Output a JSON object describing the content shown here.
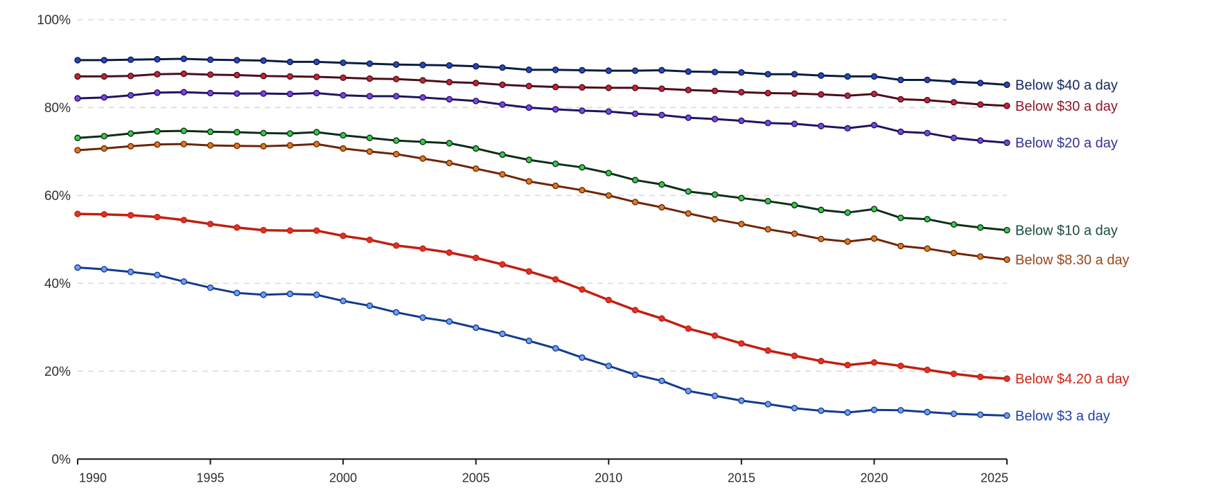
{
  "chart_data": {
    "type": "line",
    "title": "",
    "grid": "horizontal-dashed",
    "legend_position": "right-end-labels",
    "axes": {
      "x_min": 1990,
      "x_max": 2025,
      "y_min": 0,
      "y_max": 100,
      "xticks": [
        1990,
        1995,
        2000,
        2005,
        2010,
        2015,
        2020,
        2025
      ],
      "yticks": [
        0,
        20,
        40,
        60,
        80,
        100
      ],
      "ytick_suffix": "%"
    },
    "x": [
      1990,
      1991,
      1992,
      1993,
      1994,
      1995,
      1996,
      1997,
      1998,
      1999,
      2000,
      2001,
      2002,
      2003,
      2004,
      2005,
      2006,
      2007,
      2008,
      2009,
      2010,
      2011,
      2012,
      2013,
      2014,
      2015,
      2016,
      2017,
      2018,
      2019,
      2020,
      2021,
      2022,
      2023,
      2024,
      2025
    ],
    "series": [
      {
        "name": "below-40-a-day",
        "label": "Below $40 a day",
        "line_color": "#0a1c40",
        "marker_color": "#2746c4",
        "label_color": "#12275e",
        "line_width": 3,
        "values": [
          90.8,
          90.8,
          90.9,
          91.0,
          91.1,
          90.9,
          90.8,
          90.7,
          90.4,
          90.4,
          90.2,
          90.0,
          89.8,
          89.7,
          89.6,
          89.4,
          89.1,
          88.6,
          88.6,
          88.5,
          88.4,
          88.4,
          88.5,
          88.2,
          88.1,
          88.0,
          87.6,
          87.6,
          87.3,
          87.1,
          87.1,
          86.3,
          86.3,
          85.9,
          85.6,
          85.2
        ]
      },
      {
        "name": "below-30-a-day",
        "label": "Below $30 a day",
        "line_color": "#4a0d18",
        "marker_color": "#c22438",
        "label_color": "#8f1728",
        "line_width": 3,
        "values": [
          87.1,
          87.1,
          87.2,
          87.6,
          87.7,
          87.5,
          87.4,
          87.2,
          87.1,
          87.0,
          86.8,
          86.6,
          86.5,
          86.2,
          85.8,
          85.6,
          85.2,
          84.9,
          84.7,
          84.6,
          84.5,
          84.5,
          84.3,
          84.0,
          83.8,
          83.5,
          83.3,
          83.2,
          83.0,
          82.7,
          83.1,
          81.9,
          81.7,
          81.2,
          80.7,
          80.4
        ]
      },
      {
        "name": "below-20-a-day",
        "label": "Below $20 a day",
        "line_color": "#1e1460",
        "marker_color": "#7d44e0",
        "label_color": "#33309b",
        "line_width": 3,
        "values": [
          82.1,
          82.3,
          82.8,
          83.4,
          83.5,
          83.3,
          83.2,
          83.2,
          83.1,
          83.3,
          82.8,
          82.6,
          82.6,
          82.3,
          81.9,
          81.5,
          80.7,
          80.0,
          79.6,
          79.3,
          79.1,
          78.6,
          78.3,
          77.7,
          77.4,
          77.0,
          76.5,
          76.3,
          75.8,
          75.3,
          76.0,
          74.5,
          74.2,
          73.1,
          72.5,
          72.0
        ]
      },
      {
        "name": "below-10-a-day",
        "label": "Below $10 a day",
        "line_color": "#0c2e16",
        "marker_color": "#37c94c",
        "label_color": "#1b4d3e",
        "line_width": 3,
        "values": [
          73.1,
          73.5,
          74.1,
          74.6,
          74.7,
          74.5,
          74.4,
          74.2,
          74.1,
          74.4,
          73.7,
          73.1,
          72.5,
          72.2,
          71.9,
          70.7,
          69.3,
          68.1,
          67.2,
          66.4,
          65.1,
          63.5,
          62.5,
          60.9,
          60.2,
          59.4,
          58.7,
          57.8,
          56.7,
          56.1,
          56.9,
          54.9,
          54.6,
          53.4,
          52.7,
          52.1
        ]
      },
      {
        "name": "below-8-30-a-day",
        "label": "Below $8.30 a day",
        "line_color": "#6e2406",
        "marker_color": "#d97b23",
        "label_color": "#96491a",
        "line_width": 3,
        "values": [
          70.3,
          70.7,
          71.2,
          71.6,
          71.7,
          71.4,
          71.3,
          71.2,
          71.4,
          71.7,
          70.7,
          70.0,
          69.4,
          68.4,
          67.4,
          66.1,
          64.8,
          63.2,
          62.2,
          61.2,
          60.0,
          58.5,
          57.3,
          55.9,
          54.6,
          53.5,
          52.3,
          51.3,
          50.1,
          49.5,
          50.2,
          48.5,
          47.9,
          46.9,
          46.1,
          45.4
        ]
      },
      {
        "name": "below-4-20-a-day",
        "label": "Below $4.20 a day",
        "line_color": "#c01f12",
        "marker_color": "#e03325",
        "label_color": "#ce2417",
        "line_width": 3.5,
        "values": [
          55.8,
          55.7,
          55.5,
          55.1,
          54.4,
          53.5,
          52.7,
          52.1,
          52.0,
          52.0,
          50.8,
          49.9,
          48.6,
          47.9,
          47.0,
          45.8,
          44.3,
          42.7,
          40.9,
          38.6,
          36.2,
          33.9,
          32.0,
          29.7,
          28.1,
          26.3,
          24.7,
          23.5,
          22.3,
          21.4,
          22.0,
          21.2,
          20.3,
          19.4,
          18.7,
          18.3
        ]
      },
      {
        "name": "below-3-a-day",
        "label": "Below $3 a day",
        "line_color": "#123a8f",
        "marker_color": "#6f9ef2",
        "label_color": "#1d43a8",
        "line_width": 3,
        "values": [
          43.6,
          43.2,
          42.6,
          41.9,
          40.4,
          39.0,
          37.8,
          37.4,
          37.6,
          37.4,
          36.0,
          34.9,
          33.4,
          32.2,
          31.3,
          29.9,
          28.5,
          26.9,
          25.2,
          23.1,
          21.2,
          19.2,
          17.8,
          15.5,
          14.4,
          13.3,
          12.5,
          11.6,
          11.0,
          10.6,
          11.2,
          11.1,
          10.7,
          10.3,
          10.1,
          9.9
        ]
      }
    ]
  },
  "style_tokens": {
    "gridline_color": "#d9d9d9",
    "axis_color": "#1a1a1a",
    "tick_text_color": "#2e2e2e",
    "background_color": "#ffffff"
  }
}
